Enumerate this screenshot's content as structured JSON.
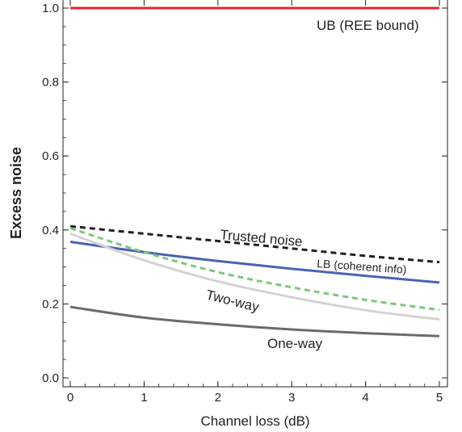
{
  "chart_data": {
    "type": "line",
    "xlabel": "Channel loss (dB)",
    "ylabel": "Excess noise",
    "xlim": [
      0,
      5
    ],
    "ylim": [
      0,
      1.0
    ],
    "xticks": [
      0,
      1,
      2,
      3,
      4,
      5
    ],
    "yticks": [
      0.0,
      0.2,
      0.4,
      0.6,
      0.8,
      1.0
    ],
    "xtick_labels": [
      "0",
      "1",
      "2",
      "3",
      "4",
      "5"
    ],
    "ytick_labels": [
      "0.0",
      "0.2",
      "0.4",
      "0.6",
      "0.8",
      "1.0"
    ],
    "grid": false,
    "series": [
      {
        "name": "UB (REE bound)",
        "color": "#e0262b",
        "style": "solid",
        "x": [
          0,
          1,
          2,
          3,
          4,
          5
        ],
        "y": [
          1.0,
          1.0,
          1.0,
          1.0,
          1.0,
          1.0
        ]
      },
      {
        "name": "Trusted noise",
        "color": "#231f20",
        "style": "dashed",
        "x": [
          0,
          1,
          2,
          3,
          4,
          5
        ],
        "y": [
          0.41,
          0.39,
          0.37,
          0.35,
          0.33,
          0.313
        ]
      },
      {
        "name": "LB (coherent info)",
        "color": "#4a64b0",
        "style": "solid",
        "x": [
          0,
          1,
          2,
          3,
          4,
          5
        ],
        "y": [
          0.368,
          0.34,
          0.316,
          0.295,
          0.276,
          0.258
        ]
      },
      {
        "name": "",
        "color": "#7cc77c",
        "style": "dashed",
        "x": [
          0,
          1,
          2,
          3,
          4,
          5
        ],
        "y": [
          0.405,
          0.34,
          0.286,
          0.245,
          0.211,
          0.184
        ]
      },
      {
        "name": "Two-way",
        "color": "#d3d3d3",
        "style": "solid",
        "x": [
          0,
          1,
          2,
          3,
          4,
          5
        ],
        "y": [
          0.39,
          0.318,
          0.261,
          0.218,
          0.183,
          0.158
        ]
      },
      {
        "name": "One-way",
        "color": "#6b6b6b",
        "style": "solid",
        "x": [
          0,
          1,
          2,
          3,
          4,
          5
        ],
        "y": [
          0.192,
          0.163,
          0.145,
          0.131,
          0.121,
          0.113
        ]
      }
    ],
    "annotations": [
      "UB (REE bound)",
      "Trusted noise",
      "LB (coherent info)",
      "Two-way",
      "One-way"
    ]
  }
}
